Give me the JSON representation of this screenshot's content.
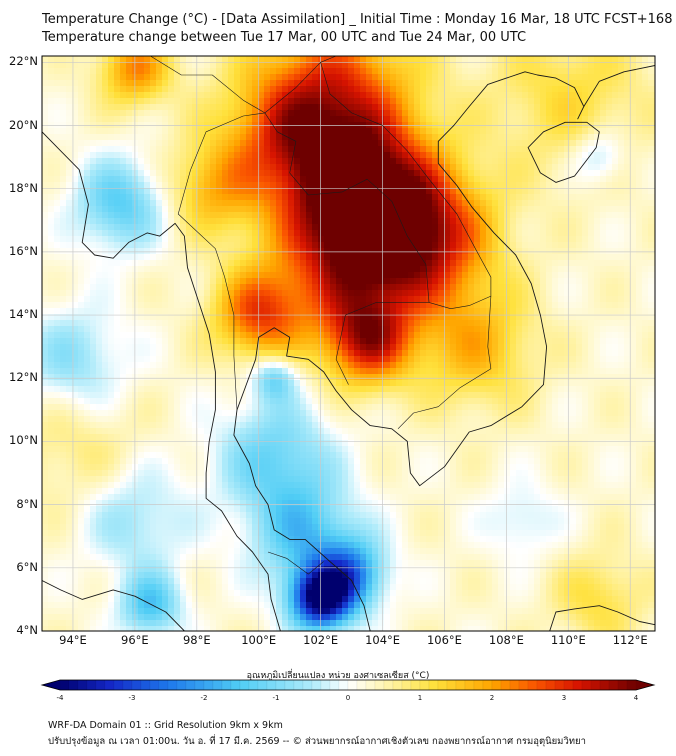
{
  "header": {
    "title_line1": "Temperature Change (°C) - [Data Assimilation] _ Initial Time : Monday 16 Mar, 18 UTC FCST+168",
    "title_line2": "Temperature change between Tue 17 Mar, 00 UTC and Tue 24 Mar, 00 UTC"
  },
  "map": {
    "lat_labels": [
      "22°N",
      "20°N",
      "18°N",
      "16°N",
      "14°N",
      "12°N",
      "10°N",
      "8°N",
      "6°N",
      "4°N"
    ],
    "lon_labels": [
      "94°E",
      "96°E",
      "98°E",
      "100°E",
      "102°E",
      "104°E",
      "106°E",
      "108°E",
      "110°E",
      "112°E"
    ],
    "lat_range": [
      4,
      22.2
    ],
    "lon_range": [
      93,
      112.8
    ],
    "field_blobs": [
      {
        "lon": 102.5,
        "lat": 21.0,
        "value": 2.6,
        "spread_deg": 1.8
      },
      {
        "lon": 103.5,
        "lat": 18.0,
        "value": 3.0,
        "spread_deg": 1.5
      },
      {
        "lon": 103.0,
        "lat": 16.0,
        "value": 3.2,
        "spread_deg": 1.7
      },
      {
        "lon": 105.5,
        "lat": 16.5,
        "value": 2.8,
        "spread_deg": 1.5
      },
      {
        "lon": 100.0,
        "lat": 14.0,
        "value": 2.6,
        "spread_deg": 1.0
      },
      {
        "lon": 103.5,
        "lat": 13.2,
        "value": 3.0,
        "spread_deg": 1.0
      },
      {
        "lon": 101.0,
        "lat": 19.5,
        "value": 2.2,
        "spread_deg": 1.5
      },
      {
        "lon": 98.5,
        "lat": 18.0,
        "value": 1.6,
        "spread_deg": 1.0
      },
      {
        "lon": 96.0,
        "lat": 21.8,
        "value": 2.2,
        "spread_deg": 0.8
      },
      {
        "lon": 107.0,
        "lat": 13.0,
        "value": 1.7,
        "spread_deg": 1.3
      },
      {
        "lon": 110.0,
        "lat": 21.0,
        "value": 1.2,
        "spread_deg": 1.8
      },
      {
        "lon": 111.0,
        "lat": 5.0,
        "value": 1.2,
        "spread_deg": 1.0
      },
      {
        "lon": 94.0,
        "lat": 10.0,
        "value": 0.9,
        "spread_deg": 1.5
      },
      {
        "lon": 95.5,
        "lat": 17.5,
        "value": -1.4,
        "spread_deg": 1.0
      },
      {
        "lon": 94.0,
        "lat": 12.5,
        "value": -0.9,
        "spread_deg": 1.2
      },
      {
        "lon": 96.0,
        "lat": 7.5,
        "value": -0.7,
        "spread_deg": 1.2
      },
      {
        "lon": 100.5,
        "lat": 9.5,
        "value": -1.2,
        "spread_deg": 1.3
      },
      {
        "lon": 101.5,
        "lat": 7.0,
        "value": -1.4,
        "spread_deg": 1.2
      },
      {
        "lon": 102.0,
        "lat": 5.0,
        "value": -3.8,
        "spread_deg": 0.7
      },
      {
        "lon": 103.0,
        "lat": 5.8,
        "value": -2.0,
        "spread_deg": 0.8
      },
      {
        "lon": 96.5,
        "lat": 4.8,
        "value": -1.5,
        "spread_deg": 0.7
      },
      {
        "lon": 100.5,
        "lat": 12.0,
        "value": -1.2,
        "spread_deg": 0.5
      },
      {
        "lon": 111.0,
        "lat": 19.0,
        "value": -0.7,
        "spread_deg": 0.6
      },
      {
        "lon": 108.5,
        "lat": 7.5,
        "value": -0.4,
        "spread_deg": 0.8
      }
    ],
    "field_base": 0.3
  },
  "colorbar": {
    "title": "อุณหภูมิเปลี่ยนแปลง หน่วย องศาเซลเซียส (°C)",
    "tick_labels": [
      "-4",
      "-3",
      "-2",
      "-1",
      "0",
      "1",
      "2",
      "3",
      "4"
    ],
    "range": [
      -4,
      4
    ]
  },
  "footer": {
    "line1": "WRF-DA Domain 01 :: Grid Resolution 9km x 9km",
    "line2": "ปรับปรุงข้อมูล ณ เวลา 01:00น. วัน อ. ที่ 17 มี.ค. 2569 -- © ส่วนพยากรณ์อากาศเชิงตัวเลข กองพยากรณ์อากาศ กรมอุตุนิยมวิทยา"
  },
  "colors": {
    "grid": "#c9c9c9",
    "coast": "#1a1a1a"
  }
}
